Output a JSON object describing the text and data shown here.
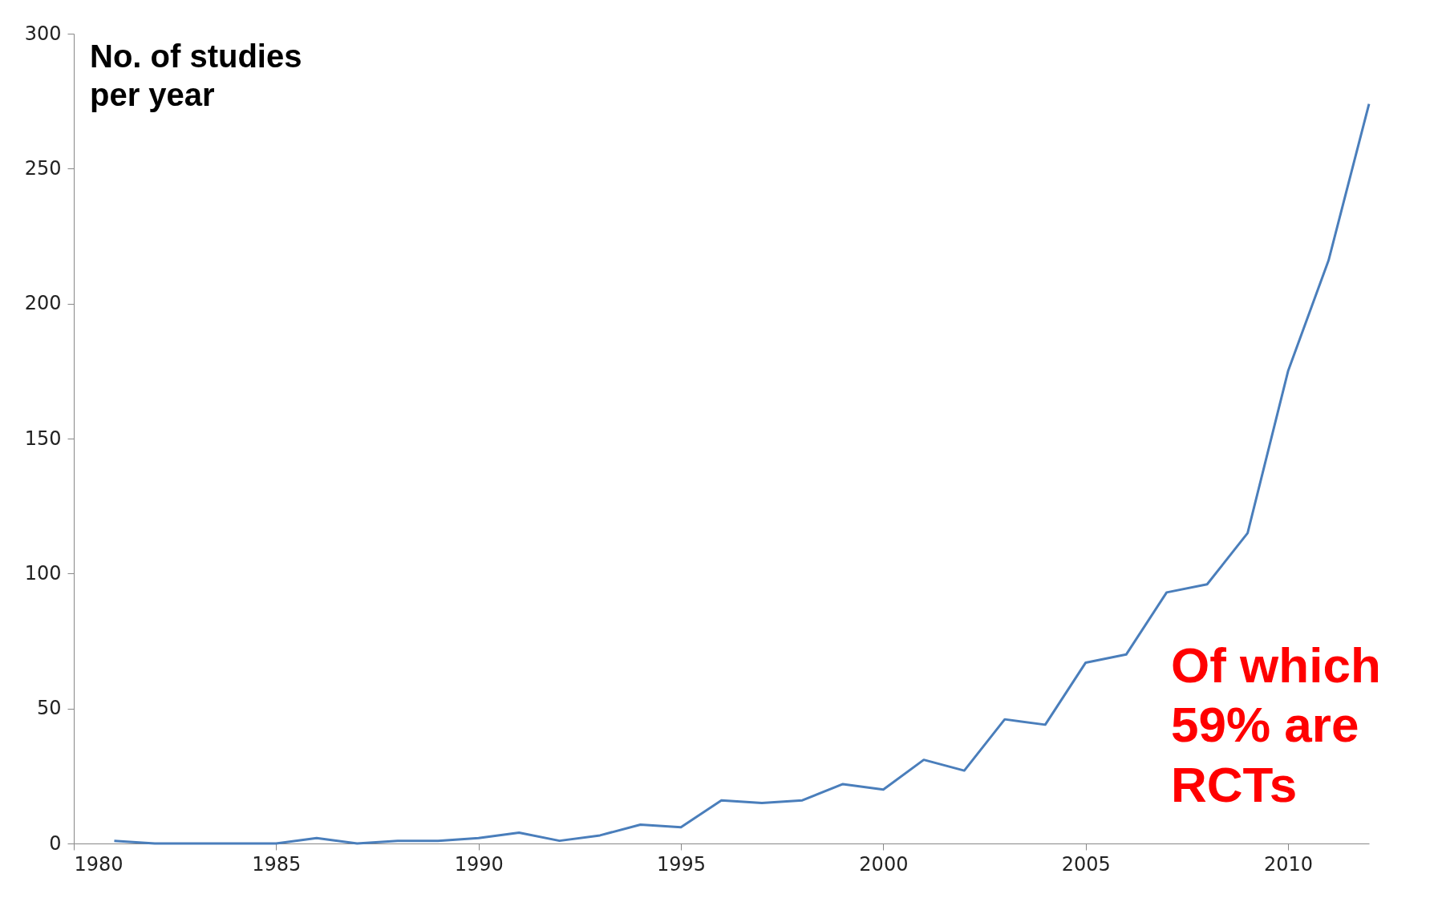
{
  "chart_data": {
    "type": "line",
    "annotations": [
      "No. of studies\nper year",
      "Of which\n59% are\nRCTs"
    ],
    "x": [
      1981,
      1982,
      1983,
      1984,
      1985,
      1986,
      1987,
      1988,
      1989,
      1990,
      1991,
      1992,
      1993,
      1994,
      1995,
      1996,
      1997,
      1998,
      1999,
      2000,
      2001,
      2002,
      2003,
      2004,
      2005,
      2006,
      2007,
      2008,
      2009,
      2010,
      2011,
      2012
    ],
    "series": [
      {
        "color": "#4a7ebb",
        "values": [
          1,
          0,
          0,
          0,
          0,
          2,
          0,
          1,
          1,
          2,
          4,
          1,
          3,
          7,
          6,
          16,
          15,
          16,
          22,
          20,
          31,
          27,
          46,
          44,
          67,
          70,
          93,
          96,
          115,
          175,
          216,
          274
        ]
      }
    ],
    "xlim": [
      1980,
      2012
    ],
    "xticks": [
      1980,
      1985,
      1990,
      1995,
      2000,
      2005,
      2010
    ],
    "ylim": [
      0,
      300
    ],
    "yticks": [
      0,
      50,
      100,
      150,
      200,
      250,
      300
    ],
    "grid": false,
    "marker": "none",
    "line_style": "solid"
  }
}
